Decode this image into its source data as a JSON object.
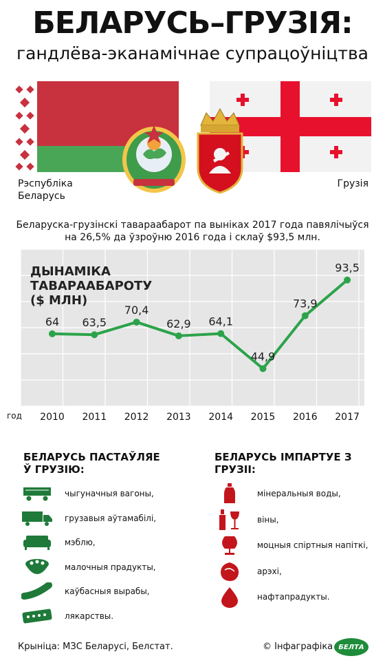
{
  "header": {
    "title": "БЕЛАРУСЬ–ГРУЗІЯ:",
    "subtitle": "гандлёва-эканамічнае супрацоўніцтва"
  },
  "countries": {
    "left": "Рэспубліка Беларусь",
    "right": "Грузія"
  },
  "intro": "Беларуска-грузінскі тавараабарот па выніках 2017 года павялічыўся на 26,5% да ўзроўню 2016 года і склаў $93,5 млн.",
  "chart_title": "ДЫНАМІКА ТАВАРААБАРОТУ ($ МЛН)",
  "chart_data": {
    "type": "line",
    "title": "ДЫНАМІКА ТАВАРААБАРОТУ ($ МЛН)",
    "xlabel": "год",
    "ylabel": "",
    "x": [
      "2010",
      "2011",
      "2012",
      "2013",
      "2014",
      "2015",
      "2016",
      "2017"
    ],
    "values": [
      64,
      63.5,
      70.4,
      62.9,
      64.1,
      44.9,
      73.9,
      93.5
    ],
    "value_labels": [
      "64",
      "63,5",
      "70,4",
      "62,9",
      "64,1",
      "44,9",
      "73,9",
      "93,5"
    ],
    "grid": true,
    "color": "#2ca34a"
  },
  "exports": {
    "heading": "БЕЛАРУСЬ ПАСТАЎЛЯЕ Ў ГРУЗІЮ:",
    "items": [
      {
        "label": "чыгуначныя вагоны,",
        "icon": "railcar-icon"
      },
      {
        "label": "грузавыя аўтамабілі,",
        "icon": "truck-icon"
      },
      {
        "label": "мэблю,",
        "icon": "sofa-icon"
      },
      {
        "label": "малочныя прадукты,",
        "icon": "dairy-bowl-icon"
      },
      {
        "label": "каўбасныя вырабы,",
        "icon": "sausage-icon"
      },
      {
        "label": "лякарствы.",
        "icon": "pills-icon"
      }
    ]
  },
  "imports": {
    "heading": "БЕЛАРУСЬ ІМПАРТУЕ З ГРУЗІІ:",
    "items": [
      {
        "label": "мінеральныя воды,",
        "icon": "water-bottle-icon"
      },
      {
        "label": "віны,",
        "icon": "wine-icon"
      },
      {
        "label": "моцныя спіртныя напіткі,",
        "icon": "cognac-glass-icon"
      },
      {
        "label": "арэхі,",
        "icon": "nut-icon"
      },
      {
        "label": "нафтапрадукты.",
        "icon": "oil-drop-icon"
      }
    ]
  },
  "footer": {
    "source": "Крыніца: МЗС Беларусі, Белстат.",
    "credit": "© Інфаграфіка",
    "logo": "БЕЛТА"
  },
  "colors": {
    "green": "#2ca34a",
    "icon_green": "#1f7a3a",
    "icon_red": "#c3161c",
    "by_red": "#c8313e",
    "by_green": "#4aa657",
    "ge_red": "#e8112d"
  }
}
